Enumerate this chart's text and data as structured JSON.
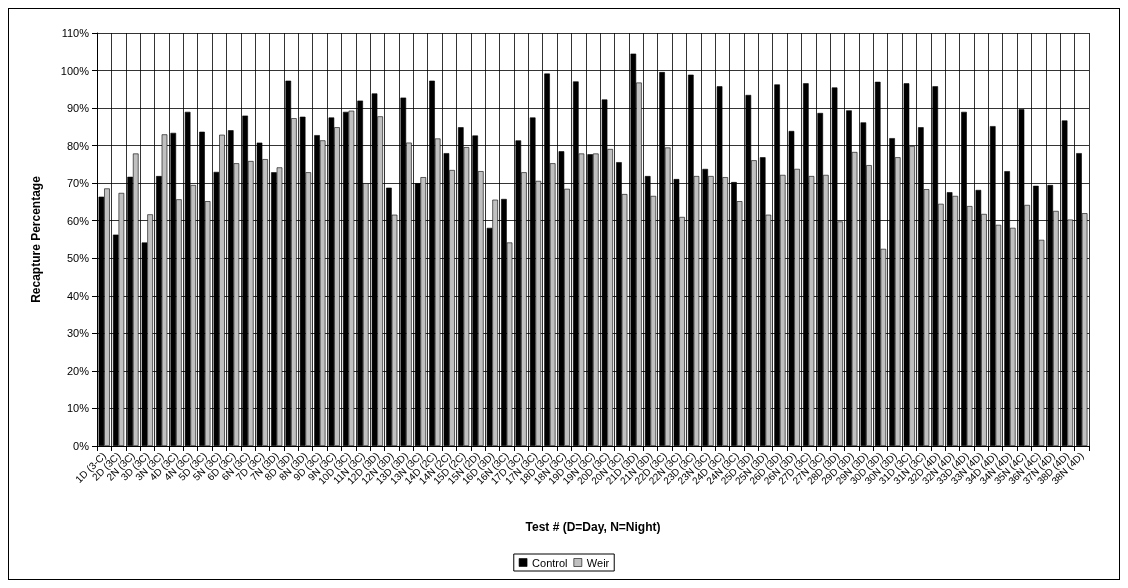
{
  "chart_data": {
    "type": "bar",
    "xlabel": "Test # (D=Day, N=Night)",
    "ylabel": "Recapture Percentage",
    "categories": [
      "1D (3-C)",
      "2D (3C)",
      "2N (3C)",
      "3D (3C)",
      "3N (3C)",
      "4D (3C)",
      "4N (3C)",
      "5D (3C)",
      "5N (3C)",
      "6D (3C)",
      "6N (3C)",
      "7D (3C)",
      "7N (3D)",
      "8D (3D)",
      "8N (3D)",
      "9D (3C)",
      "9N (3C)",
      "10D (3C)",
      "11N (3C)",
      "12D (3D)",
      "12N (3D)",
      "13D (3D)",
      "13N (3C)",
      "14D (2C)",
      "14N (2C)",
      "15D (2C)",
      "15N (2D)",
      "16D (3D)",
      "16N (3C)",
      "17D (3C)",
      "17N (3C)",
      "18D (3C)",
      "18N (3C)",
      "19D (3C)",
      "19N (3C)",
      "20D (3C)",
      "20N (3C)",
      "21D (3D)",
      "21N (3D)",
      "22D (3C)",
      "22N (3C)",
      "23D (3C)",
      "23N (3C)",
      "24D (3C)",
      "24N (3C)",
      "25D (3D)",
      "25N (3D)",
      "26D (3D)",
      "26N (3D)",
      "27D (3C)",
      "27N (3C)",
      "28D (3D)",
      "29D (3D)",
      "29N (3D)",
      "30D (3D)",
      "30N (3D)",
      "31D (3C)",
      "31N (3C)",
      "32D (4D)",
      "32N (4D)",
      "33D (4D)",
      "33N (4D)",
      "34D (4D)",
      "34N (4D)",
      "35N (4C)",
      "36N (4C)",
      "37N (4D)",
      "38D (4D)",
      "38N (4D)"
    ],
    "series": [
      {
        "name": "Control",
        "color": "#000000",
        "values": [
          66.4,
          56.3,
          71.7,
          54.2,
          71.9,
          83.4,
          89.0,
          83.7,
          73.0,
          84.1,
          88.0,
          80.8,
          72.9,
          97.3,
          87.7,
          82.8,
          87.5,
          89.0,
          92.0,
          93.9,
          68.8,
          92.8,
          70.0,
          97.3,
          78.0,
          84.9,
          82.7,
          58.1,
          65.8,
          81.4,
          87.5,
          99.2,
          78.5,
          97.1,
          77.7,
          92.3,
          75.6,
          104.5,
          71.9,
          99.6,
          71.1,
          98.9,
          73.8,
          95.8,
          70.3,
          93.5,
          76.9,
          96.3,
          83.9,
          96.6,
          88.7,
          95.5,
          89.4,
          86.2,
          97.0,
          82.0,
          96.6,
          84.9,
          95.8,
          67.6,
          89.0,
          68.2,
          85.2,
          73.2,
          89.7,
          69.3,
          69.5,
          86.7,
          78.0
        ]
      },
      {
        "name": "Weir",
        "color": "#c0c0c0",
        "values": [
          68.6,
          67.4,
          77.9,
          61.7,
          83.0,
          65.7,
          69.5,
          65.2,
          82.9,
          75.3,
          75.9,
          76.4,
          74.2,
          87.3,
          72.9,
          81.4,
          84.9,
          89.3,
          70.0,
          87.8,
          61.6,
          80.8,
          71.6,
          81.9,
          73.5,
          79.6,
          73.2,
          65.6,
          54.2,
          72.9,
          70.6,
          75.3,
          68.5,
          77.9,
          77.9,
          79.1,
          67.1,
          96.8,
          66.6,
          79.5,
          61.0,
          71.9,
          71.9,
          71.6,
          65.2,
          76.1,
          61.6,
          72.2,
          73.8,
          71.9,
          72.2,
          59.8,
          78.3,
          74.8,
          52.5,
          76.9,
          79.9,
          68.4,
          64.5,
          66.6,
          63.9,
          61.8,
          58.9,
          58.1,
          64.2,
          54.9,
          62.6,
          60.3,
          62.0
        ]
      }
    ],
    "ylim": [
      0,
      110
    ],
    "yticks": [
      {
        "value": 0,
        "label": "0%"
      },
      {
        "value": 10,
        "label": "10%"
      },
      {
        "value": 20,
        "label": "20%"
      },
      {
        "value": 30,
        "label": "30%"
      },
      {
        "value": 40,
        "label": "40%"
      },
      {
        "value": 50,
        "label": "50%"
      },
      {
        "value": 60,
        "label": "60%"
      },
      {
        "value": 70,
        "label": "70%"
      },
      {
        "value": 80,
        "label": "80%"
      },
      {
        "value": 90,
        "label": "90%"
      },
      {
        "value": 100,
        "label": "100%"
      },
      {
        "value": 110,
        "label": "110%"
      }
    ],
    "grid": true,
    "legend": "bottom"
  }
}
